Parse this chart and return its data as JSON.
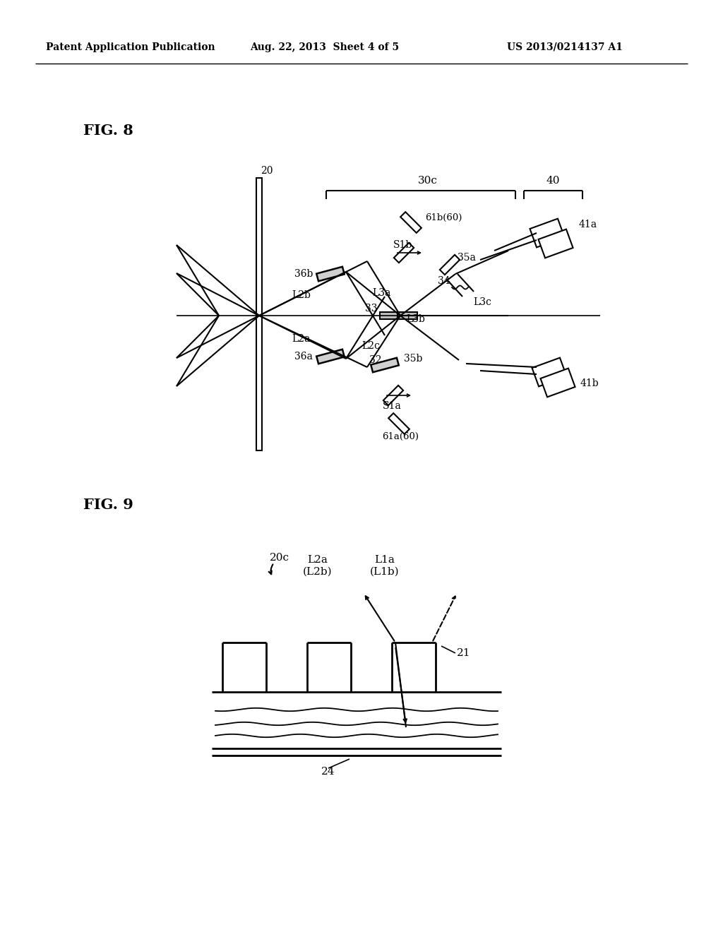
{
  "bg_color": "#ffffff",
  "text_color": "#000000",
  "header_left": "Patent Application Publication",
  "header_center": "Aug. 22, 2013  Sheet 4 of 5",
  "header_right": "US 2013/0214137 A1",
  "fig8_label": "FIG. 8",
  "fig9_label": "FIG. 9"
}
